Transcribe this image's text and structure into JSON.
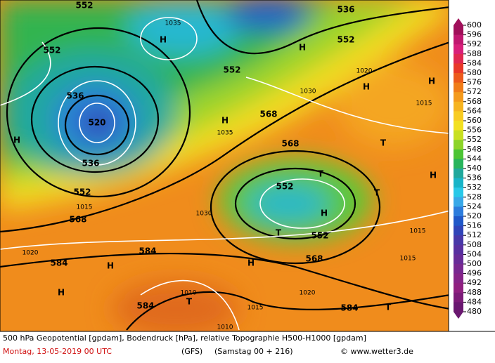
{
  "map_labels": [
    "552",
    "536",
    "552",
    "1035",
    "H",
    "H",
    "552",
    "552",
    "536",
    "520",
    "536",
    "568",
    "H",
    "H",
    "568",
    "552",
    "H",
    "552",
    "552",
    "568",
    "584",
    "584",
    "H",
    "H",
    "584",
    "T",
    "584",
    "T",
    "T",
    "T",
    "T",
    "H",
    "H",
    "H",
    "568",
    "H",
    "T",
    "1030",
    "1015",
    "1020",
    "1010",
    "1015",
    "1010",
    "1020",
    "1015",
    "1015",
    "1015",
    "1020",
    "1030",
    "1035"
  ],
  "legend": {
    "ticks": [
      600,
      596,
      592,
      588,
      584,
      580,
      576,
      572,
      568,
      564,
      560,
      556,
      552,
      548,
      544,
      540,
      536,
      532,
      528,
      524,
      520,
      516,
      512,
      508,
      504,
      500,
      496,
      492,
      488,
      484,
      480
    ],
    "colors": [
      "#a0105a",
      "#c01870",
      "#d8207a",
      "#e02850",
      "#e83828",
      "#ec5a1c",
      "#f07c18",
      "#f49a1c",
      "#f6b420",
      "#f8cc22",
      "#f2e020",
      "#c8e020",
      "#8cd428",
      "#4cc434",
      "#28b45c",
      "#20a89c",
      "#18b4c8",
      "#28c8e8",
      "#38a8e8",
      "#2c7cdc",
      "#2058c8",
      "#3044b8",
      "#4838a8",
      "#5830a0",
      "#682c98",
      "#782890",
      "#862488",
      "#902080",
      "#7c1c78",
      "#6a1870"
    ]
  },
  "footer": {
    "title": "500 hPa Geopotential [gpdam], Bodendruck [hPa], relative Topographie H500-H1000 [gpdam]",
    "date": "Montag, 13-05-2019  00 UTC",
    "model": "(GFS)",
    "run": "(Samstag 00 + 216)",
    "credit": "© www.wetter3.de"
  }
}
